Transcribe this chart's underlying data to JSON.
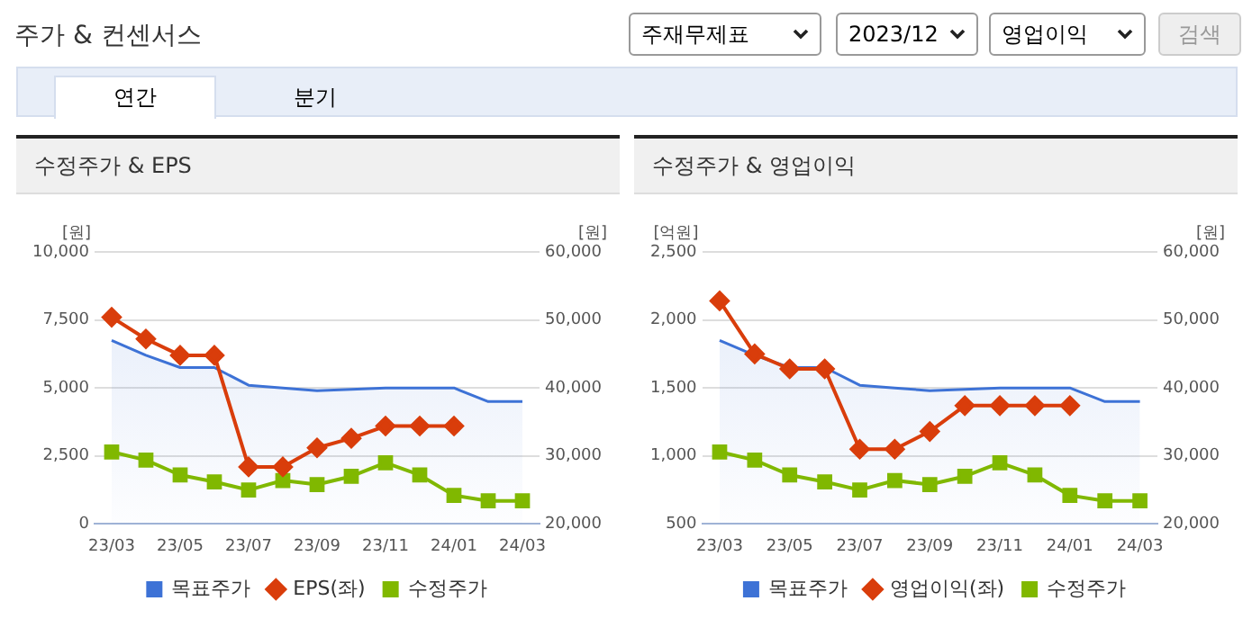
{
  "chart_data": [
    {
      "type": "other",
      "title": "주가 & 컨센서스",
      "annotations": [
        "주재무제표",
        "2023/12",
        "영업이익",
        "검색",
        "연간",
        "분기"
      ]
    },
    {
      "type": "line",
      "title": "수정주가 & EPS",
      "ylabel": "[원]",
      "y2label": "[원]",
      "categories": [
        "23/03",
        null,
        "23/05",
        null,
        "23/07",
        null,
        "23/09",
        null,
        "23/11",
        null,
        "24/01",
        null,
        "24/03"
      ],
      "ylim": [
        0,
        10000
      ],
      "yticks": [
        0,
        {
          "value": 2500,
          "label": "2,500"
        },
        {
          "value": 5000,
          "label": "5,000"
        },
        {
          "value": 7500,
          "label": "7,500"
        },
        {
          "value": 10000,
          "label": "10,000"
        }
      ],
      "y2lim": [
        20000,
        60000
      ],
      "y2ticks": [
        {
          "value": 20000,
          "label": "20,000"
        },
        {
          "value": 30000,
          "label": "30,000"
        },
        {
          "value": 40000,
          "label": "40,000"
        },
        {
          "value": 50000,
          "label": "50,000"
        },
        {
          "value": 60000,
          "label": "60,000"
        }
      ],
      "grid": "y",
      "legend": "bottom",
      "series": [
        {
          "name": "목표주가",
          "type": "area",
          "axis": "y2",
          "color": "#3d72d6",
          "marker": "none",
          "values": [
            47000,
            44800,
            43000,
            43000,
            40400,
            40000,
            39600,
            39800,
            40000,
            40000,
            40000,
            38000,
            38000
          ]
        },
        {
          "name": "EPS(좌)",
          "type": "line",
          "color": "#d93d0b",
          "marker": "diamond",
          "values": [
            7600,
            6800,
            6200,
            6200,
            2100,
            2100,
            2800,
            3150,
            3600,
            3600,
            3600,
            null,
            null
          ]
        },
        {
          "name": "수정주가",
          "type": "line",
          "axis": "y2",
          "color": "#80b800",
          "marker": "square",
          "values": [
            30600,
            29400,
            27200,
            26200,
            25000,
            26400,
            25800,
            27000,
            29000,
            27200,
            24200,
            23400,
            23400
          ]
        }
      ]
    },
    {
      "type": "line",
      "title": "수정주가 & 영업이익",
      "ylabel": "[억원]",
      "y2label": "[원]",
      "categories": [
        "23/03",
        null,
        "23/05",
        null,
        "23/07",
        null,
        "23/09",
        null,
        "23/11",
        null,
        "24/01",
        null,
        "24/03"
      ],
      "ylim": [
        500,
        2500
      ],
      "yticks": [
        500,
        {
          "value": 1000,
          "label": "1,000"
        },
        {
          "value": 1500,
          "label": "1,500"
        },
        {
          "value": 2000,
          "label": "2,000"
        },
        {
          "value": 2500,
          "label": "2,500"
        }
      ],
      "y2lim": [
        20000,
        60000
      ],
      "y2ticks": [
        {
          "value": 20000,
          "label": "20,000"
        },
        {
          "value": 30000,
          "label": "30,000"
        },
        {
          "value": 40000,
          "label": "40,000"
        },
        {
          "value": 50000,
          "label": "50,000"
        },
        {
          "value": 60000,
          "label": "60,000"
        }
      ],
      "grid": "y",
      "legend": "bottom",
      "series": [
        {
          "name": "목표주가",
          "type": "area",
          "axis": "y2",
          "color": "#3d72d6",
          "marker": "none",
          "values": [
            47000,
            44800,
            43000,
            43000,
            40400,
            40000,
            39600,
            39800,
            40000,
            40000,
            40000,
            38000,
            38000
          ]
        },
        {
          "name": "영업이익(좌)",
          "type": "line",
          "color": "#d93d0b",
          "marker": "diamond",
          "values": [
            2140,
            1750,
            1640,
            1640,
            1050,
            1050,
            1180,
            1370,
            1370,
            1370,
            1370,
            null,
            null
          ]
        },
        {
          "name": "수정주가",
          "type": "line",
          "axis": "y2",
          "color": "#80b800",
          "marker": "square",
          "values": [
            30600,
            29400,
            27200,
            26200,
            25000,
            26400,
            25800,
            27000,
            29000,
            27200,
            24200,
            23400,
            23400
          ]
        }
      ]
    }
  ]
}
